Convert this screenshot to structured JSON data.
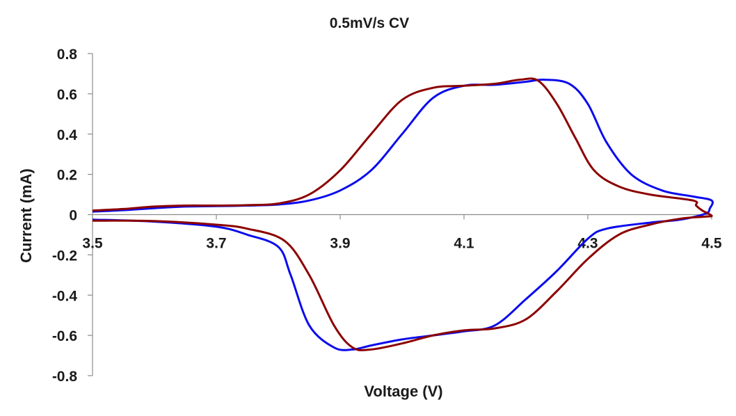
{
  "chart_data": {
    "type": "line",
    "title": "0.5mV/s CV",
    "xlabel": "Voltage (V)",
    "ylabel": "Current (mA)",
    "xlim": [
      3.5,
      4.5
    ],
    "ylim": [
      -0.8,
      0.8
    ],
    "x_ticks": [
      "3.5",
      "3.7",
      "3.9",
      "4.1",
      "4.3",
      "4.5"
    ],
    "x_tick_values": [
      3.5,
      3.7,
      3.9,
      4.1,
      4.3,
      4.5
    ],
    "y_ticks": [
      "0.8",
      "0.6",
      "0.4",
      "0.2",
      "0",
      "-0.2",
      "-0.4",
      "-0.6",
      "-0.8"
    ],
    "y_tick_values": [
      0.8,
      0.6,
      0.4,
      0.2,
      0,
      -0.2,
      -0.4,
      -0.6,
      -0.8
    ],
    "grid": false,
    "legend": "none",
    "series": [
      {
        "color": "#0a0aee",
        "points": [
          [
            3.5,
            0.015
          ],
          [
            3.55,
            0.022
          ],
          [
            3.6,
            0.032
          ],
          [
            3.65,
            0.04
          ],
          [
            3.7,
            0.042
          ],
          [
            3.75,
            0.045
          ],
          [
            3.8,
            0.05
          ],
          [
            3.85,
            0.07
          ],
          [
            3.9,
            0.12
          ],
          [
            3.95,
            0.22
          ],
          [
            4.0,
            0.4
          ],
          [
            4.05,
            0.58
          ],
          [
            4.1,
            0.64
          ],
          [
            4.15,
            0.645
          ],
          [
            4.2,
            0.66
          ],
          [
            4.23,
            0.67
          ],
          [
            4.27,
            0.65
          ],
          [
            4.3,
            0.55
          ],
          [
            4.33,
            0.36
          ],
          [
            4.37,
            0.2
          ],
          [
            4.42,
            0.12
          ],
          [
            4.47,
            0.09
          ],
          [
            4.5,
            0.07
          ],
          [
            4.497,
            0.03
          ],
          [
            4.49,
            0.005
          ],
          [
            4.45,
            -0.025
          ],
          [
            4.4,
            -0.04
          ],
          [
            4.33,
            -0.07
          ],
          [
            4.3,
            -0.12
          ],
          [
            4.25,
            -0.28
          ],
          [
            4.2,
            -0.42
          ],
          [
            4.15,
            -0.55
          ],
          [
            4.1,
            -0.58
          ],
          [
            4.05,
            -0.6
          ],
          [
            4.0,
            -0.62
          ],
          [
            3.95,
            -0.65
          ],
          [
            3.92,
            -0.67
          ],
          [
            3.89,
            -0.66
          ],
          [
            3.85,
            -0.55
          ],
          [
            3.82,
            -0.3
          ],
          [
            3.8,
            -0.16
          ],
          [
            3.75,
            -0.1
          ],
          [
            3.7,
            -0.06
          ],
          [
            3.6,
            -0.035
          ],
          [
            3.5,
            -0.025
          ]
        ]
      },
      {
        "color": "#8b0000",
        "points": [
          [
            3.5,
            0.02
          ],
          [
            3.55,
            0.028
          ],
          [
            3.6,
            0.04
          ],
          [
            3.65,
            0.045
          ],
          [
            3.7,
            0.045
          ],
          [
            3.75,
            0.047
          ],
          [
            3.8,
            0.055
          ],
          [
            3.85,
            0.1
          ],
          [
            3.9,
            0.22
          ],
          [
            3.95,
            0.4
          ],
          [
            4.0,
            0.57
          ],
          [
            4.05,
            0.63
          ],
          [
            4.1,
            0.64
          ],
          [
            4.15,
            0.65
          ],
          [
            4.19,
            0.67
          ],
          [
            4.22,
            0.665
          ],
          [
            4.25,
            0.55
          ],
          [
            4.28,
            0.38
          ],
          [
            4.31,
            0.22
          ],
          [
            4.35,
            0.14
          ],
          [
            4.4,
            0.1
          ],
          [
            4.47,
            0.07
          ],
          [
            4.475,
            0.045
          ],
          [
            4.485,
            0.02
          ],
          [
            4.5,
            -0.005
          ],
          [
            4.49,
            -0.01
          ],
          [
            4.45,
            -0.02
          ],
          [
            4.4,
            -0.05
          ],
          [
            4.35,
            -0.1
          ],
          [
            4.3,
            -0.22
          ],
          [
            4.25,
            -0.38
          ],
          [
            4.2,
            -0.52
          ],
          [
            4.15,
            -0.565
          ],
          [
            4.1,
            -0.575
          ],
          [
            4.05,
            -0.6
          ],
          [
            4.0,
            -0.64
          ],
          [
            3.95,
            -0.67
          ],
          [
            3.92,
            -0.66
          ],
          [
            3.89,
            -0.55
          ],
          [
            3.85,
            -0.3
          ],
          [
            3.81,
            -0.13
          ],
          [
            3.75,
            -0.07
          ],
          [
            3.7,
            -0.05
          ],
          [
            3.6,
            -0.032
          ],
          [
            3.5,
            -0.03
          ]
        ]
      }
    ]
  }
}
